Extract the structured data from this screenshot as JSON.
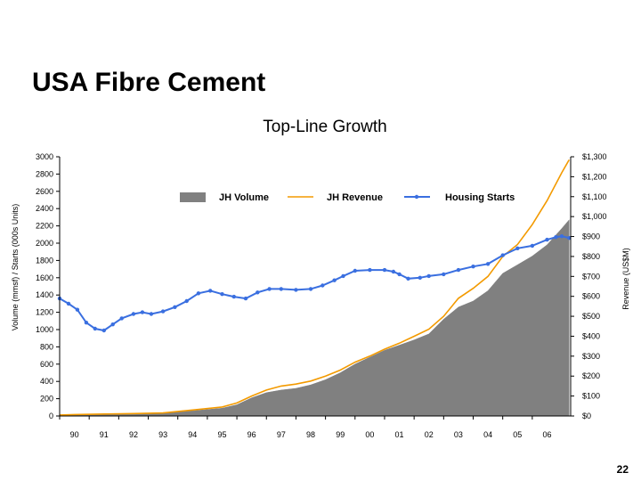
{
  "slide": {
    "title": "USA Fibre Cement",
    "page_number": "22"
  },
  "colors": {
    "volume": "#808080",
    "revenue": "#F39A00",
    "starts": "#3A6FE0",
    "axis": "#000000"
  },
  "chart_data": {
    "type": "area",
    "title": "Top-Line Growth",
    "ylabel": "Volume (mmsf)  /  Starts (000s Units)",
    "y2label": "Revenue (US$M)",
    "xlim": [
      1989.5,
      2006.8
    ],
    "ylim": [
      0,
      3000
    ],
    "y2lim": [
      0,
      1300
    ],
    "x_tick_labels": [
      "90",
      "91",
      "92",
      "93",
      "94",
      "95",
      "96",
      "97",
      "98",
      "99",
      "00",
      "01",
      "02",
      "03",
      "04",
      "05",
      "06"
    ],
    "y_tick_labels": [
      "0",
      "200",
      "400",
      "600",
      "800",
      "1000",
      "1200",
      "1400",
      "1600",
      "1800",
      "2000",
      "2200",
      "2400",
      "2600",
      "2800",
      "3000"
    ],
    "y2_tick_labels": [
      "$0",
      "$100",
      "$200",
      "$300",
      "$400",
      "$500",
      "$600",
      "$700",
      "$800",
      "$900",
      "$1,000",
      "$1,100",
      "$1,200",
      "$1,300"
    ],
    "legend_placement": "top",
    "series": [
      {
        "name": "JH Volume",
        "type": "area",
        "axis": "left",
        "x": [
          1989.5,
          1990,
          1991,
          1992,
          1993,
          1994,
          1995,
          1995.5,
          1996,
          1996.5,
          1997,
          1997.5,
          1998,
          1998.5,
          1999,
          1999.5,
          2000,
          2000.5,
          2001,
          2001.5,
          2002,
          2002.5,
          2003,
          2003.5,
          2004,
          2004.5,
          2005,
          2005.5,
          2006,
          2006.5,
          2006.75
        ],
        "values": [
          10,
          12,
          15,
          20,
          30,
          60,
          90,
          130,
          210,
          270,
          300,
          320,
          360,
          420,
          500,
          600,
          680,
          760,
          820,
          880,
          950,
          1120,
          1260,
          1330,
          1450,
          1650,
          1750,
          1850,
          1980,
          2170,
          2270
        ]
      },
      {
        "name": "JH Revenue",
        "type": "line",
        "axis": "right",
        "x": [
          1989.5,
          1990,
          1991,
          1992,
          1993,
          1994,
          1995,
          1995.5,
          1996,
          1996.5,
          1997,
          1997.5,
          1998,
          1998.5,
          1999,
          1999.5,
          2000,
          2000.5,
          2001,
          2001.5,
          2002,
          2002.5,
          2003,
          2003.5,
          2004,
          2004.5,
          2005,
          2005.5,
          2006,
          2006.5,
          2006.75
        ],
        "values": [
          5,
          7,
          10,
          12,
          15,
          30,
          45,
          65,
          100,
          130,
          150,
          160,
          175,
          200,
          230,
          270,
          300,
          335,
          365,
          400,
          435,
          500,
          590,
          640,
          700,
          800,
          860,
          960,
          1080,
          1220,
          1285
        ]
      },
      {
        "name": "Housing Starts",
        "type": "line",
        "axis": "left",
        "x": [
          1989.5,
          1989.8,
          1990.1,
          1990.4,
          1990.7,
          1991,
          1991.3,
          1991.6,
          1992,
          1992.3,
          1992.6,
          1993,
          1993.4,
          1993.8,
          1994.2,
          1994.6,
          1995,
          1995.4,
          1995.8,
          1996.2,
          1996.6,
          1997,
          1997.5,
          1998,
          1998.4,
          1998.8,
          1999.1,
          1999.5,
          2000,
          2000.5,
          2000.8,
          2001,
          2001.3,
          2001.7,
          2002,
          2002.5,
          2003,
          2003.5,
          2004,
          2004.5,
          2005,
          2005.5,
          2006,
          2006.3,
          2006.5,
          2006.75
        ],
        "values": [
          1360,
          1300,
          1230,
          1080,
          1010,
          990,
          1060,
          1130,
          1180,
          1200,
          1180,
          1210,
          1260,
          1330,
          1420,
          1450,
          1410,
          1380,
          1360,
          1430,
          1470,
          1470,
          1460,
          1470,
          1510,
          1570,
          1620,
          1680,
          1690,
          1690,
          1670,
          1640,
          1590,
          1600,
          1620,
          1640,
          1690,
          1730,
          1760,
          1860,
          1940,
          1970,
          2040,
          2070,
          2080,
          2060
        ]
      }
    ]
  }
}
